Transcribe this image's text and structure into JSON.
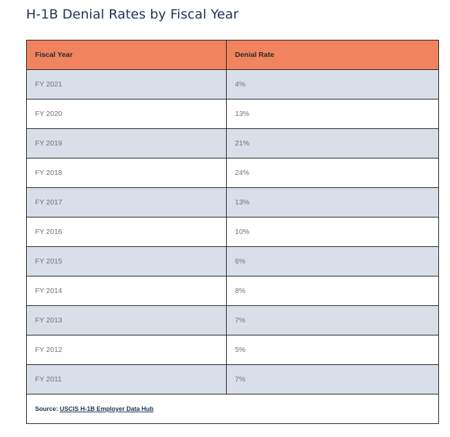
{
  "title": "H-1B Denial Rates by Fiscal Year",
  "table": {
    "headers": [
      "Fiscal Year",
      "Denial Rate"
    ],
    "rows": [
      {
        "year": "FY 2021",
        "rate": "4%"
      },
      {
        "year": "FY 2020",
        "rate": "13%"
      },
      {
        "year": "FY 2019",
        "rate": "21%"
      },
      {
        "year": "FY 2018",
        "rate": "24%"
      },
      {
        "year": "FY 2017",
        "rate": "13%"
      },
      {
        "year": "FY 2016",
        "rate": "10%"
      },
      {
        "year": "FY 2015",
        "rate": "6%"
      },
      {
        "year": "FY 2014",
        "rate": "8%"
      },
      {
        "year": "FY 2013",
        "rate": "7%"
      },
      {
        "year": "FY 2012",
        "rate": "5%"
      },
      {
        "year": "FY 2011",
        "rate": "7%"
      }
    ]
  },
  "source": {
    "label": "Source: ",
    "link_text": "USCIS H-1B Employer Data Hub"
  },
  "colors": {
    "header_bg": "#f0845f",
    "shaded_row": "#d9dfe8",
    "title_text": "#1b3457"
  }
}
